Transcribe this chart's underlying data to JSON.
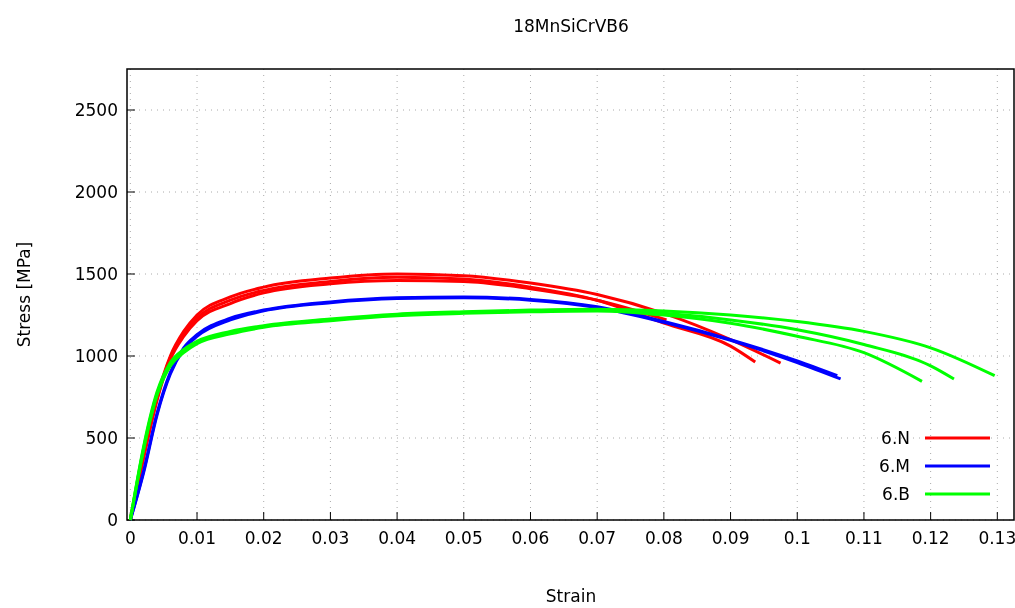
{
  "chart_data": {
    "type": "line",
    "title": "18MnSiCrVB6",
    "xlabel": "Strain",
    "ylabel": "Stress [MPa]",
    "xlim": [
      -0.0005,
      0.1325
    ],
    "ylim": [
      0,
      2750
    ],
    "xticks": [
      0,
      0.01,
      0.02,
      0.03,
      0.04,
      0.05,
      0.06,
      0.07,
      0.08,
      0.09,
      0.1,
      0.11,
      0.12,
      0.13
    ],
    "yticks": [
      0,
      500,
      1000,
      1500,
      2000,
      2500
    ],
    "grid": true,
    "legend": "bottom right",
    "line_style": "solid",
    "series": [
      {
        "name": "6.N",
        "color": "#ff0000",
        "x": [
          0,
          0.002,
          0.004,
          0.006,
          0.008,
          0.01,
          0.015,
          0.02,
          0.03,
          0.04,
          0.05,
          0.06,
          0.07,
          0.08,
          0.09,
          0.0975
        ],
        "values": [
          0,
          400,
          750,
          1000,
          1150,
          1250,
          1360,
          1420,
          1475,
          1500,
          1490,
          1445,
          1375,
          1260,
          1100,
          957
        ]
      },
      {
        "color": "#ff0000",
        "x": [
          0,
          0.002,
          0.004,
          0.006,
          0.008,
          0.01,
          0.015,
          0.02,
          0.03,
          0.04,
          0.05,
          0.06,
          0.07,
          0.08,
          0.09,
          0.0937
        ],
        "values": [
          0,
          390,
          740,
          990,
          1130,
          1230,
          1340,
          1400,
          1455,
          1480,
          1470,
          1420,
          1340,
          1200,
          1060,
          963
        ]
      },
      {
        "color": "#ff0000",
        "x": [
          0,
          0.002,
          0.004,
          0.006,
          0.008,
          0.01,
          0.015,
          0.02,
          0.03,
          0.04,
          0.05,
          0.06,
          0.07,
          0.0804
        ],
        "values": [
          0,
          380,
          730,
          980,
          1120,
          1215,
          1320,
          1385,
          1440,
          1460,
          1455,
          1410,
          1340,
          1220
        ]
      },
      {
        "name": "6.M",
        "color": "#0000ff",
        "x": [
          0,
          0.002,
          0.004,
          0.006,
          0.008,
          0.01,
          0.015,
          0.02,
          0.03,
          0.04,
          0.05,
          0.06,
          0.07,
          0.08,
          0.09,
          0.1,
          0.106
        ],
        "values": [
          0,
          300,
          650,
          900,
          1050,
          1130,
          1230,
          1280,
          1330,
          1355,
          1360,
          1345,
          1300,
          1210,
          1100,
          970,
          880
        ]
      },
      {
        "color": "#0000ff",
        "x": [
          0,
          0.002,
          0.004,
          0.006,
          0.008,
          0.01,
          0.015,
          0.02,
          0.03,
          0.04,
          0.05,
          0.06,
          0.07,
          0.08,
          0.09,
          0.1,
          0.1065
        ],
        "values": [
          0,
          290,
          640,
          890,
          1040,
          1120,
          1220,
          1275,
          1325,
          1350,
          1355,
          1340,
          1295,
          1205,
          1095,
          960,
          860
        ]
      },
      {
        "name": "6.B",
        "color": "#00ff00",
        "x": [
          0,
          0.002,
          0.004,
          0.006,
          0.008,
          0.01,
          0.015,
          0.02,
          0.03,
          0.04,
          0.05,
          0.06,
          0.07,
          0.08,
          0.09,
          0.1,
          0.11,
          0.12,
          0.1296
        ],
        "values": [
          0,
          450,
          780,
          960,
          1040,
          1090,
          1150,
          1185,
          1225,
          1255,
          1270,
          1280,
          1285,
          1275,
          1250,
          1210,
          1150,
          1050,
          880
        ]
      },
      {
        "color": "#00ff00",
        "x": [
          0,
          0.002,
          0.004,
          0.006,
          0.008,
          0.01,
          0.015,
          0.02,
          0.03,
          0.04,
          0.05,
          0.06,
          0.07,
          0.08,
          0.09,
          0.1,
          0.11,
          0.12,
          0.1235
        ],
        "values": [
          0,
          440,
          770,
          950,
          1030,
          1080,
          1140,
          1180,
          1220,
          1250,
          1265,
          1275,
          1280,
          1260,
          1220,
          1160,
          1070,
          940,
          860
        ]
      },
      {
        "color": "#00ff00",
        "x": [
          0,
          0.002,
          0.004,
          0.006,
          0.008,
          0.01,
          0.015,
          0.02,
          0.03,
          0.04,
          0.05,
          0.06,
          0.07,
          0.08,
          0.09,
          0.1,
          0.11,
          0.1187
        ],
        "values": [
          0,
          430,
          760,
          940,
          1020,
          1075,
          1135,
          1175,
          1215,
          1245,
          1260,
          1270,
          1275,
          1250,
          1200,
          1120,
          1020,
          845
        ]
      }
    ]
  }
}
